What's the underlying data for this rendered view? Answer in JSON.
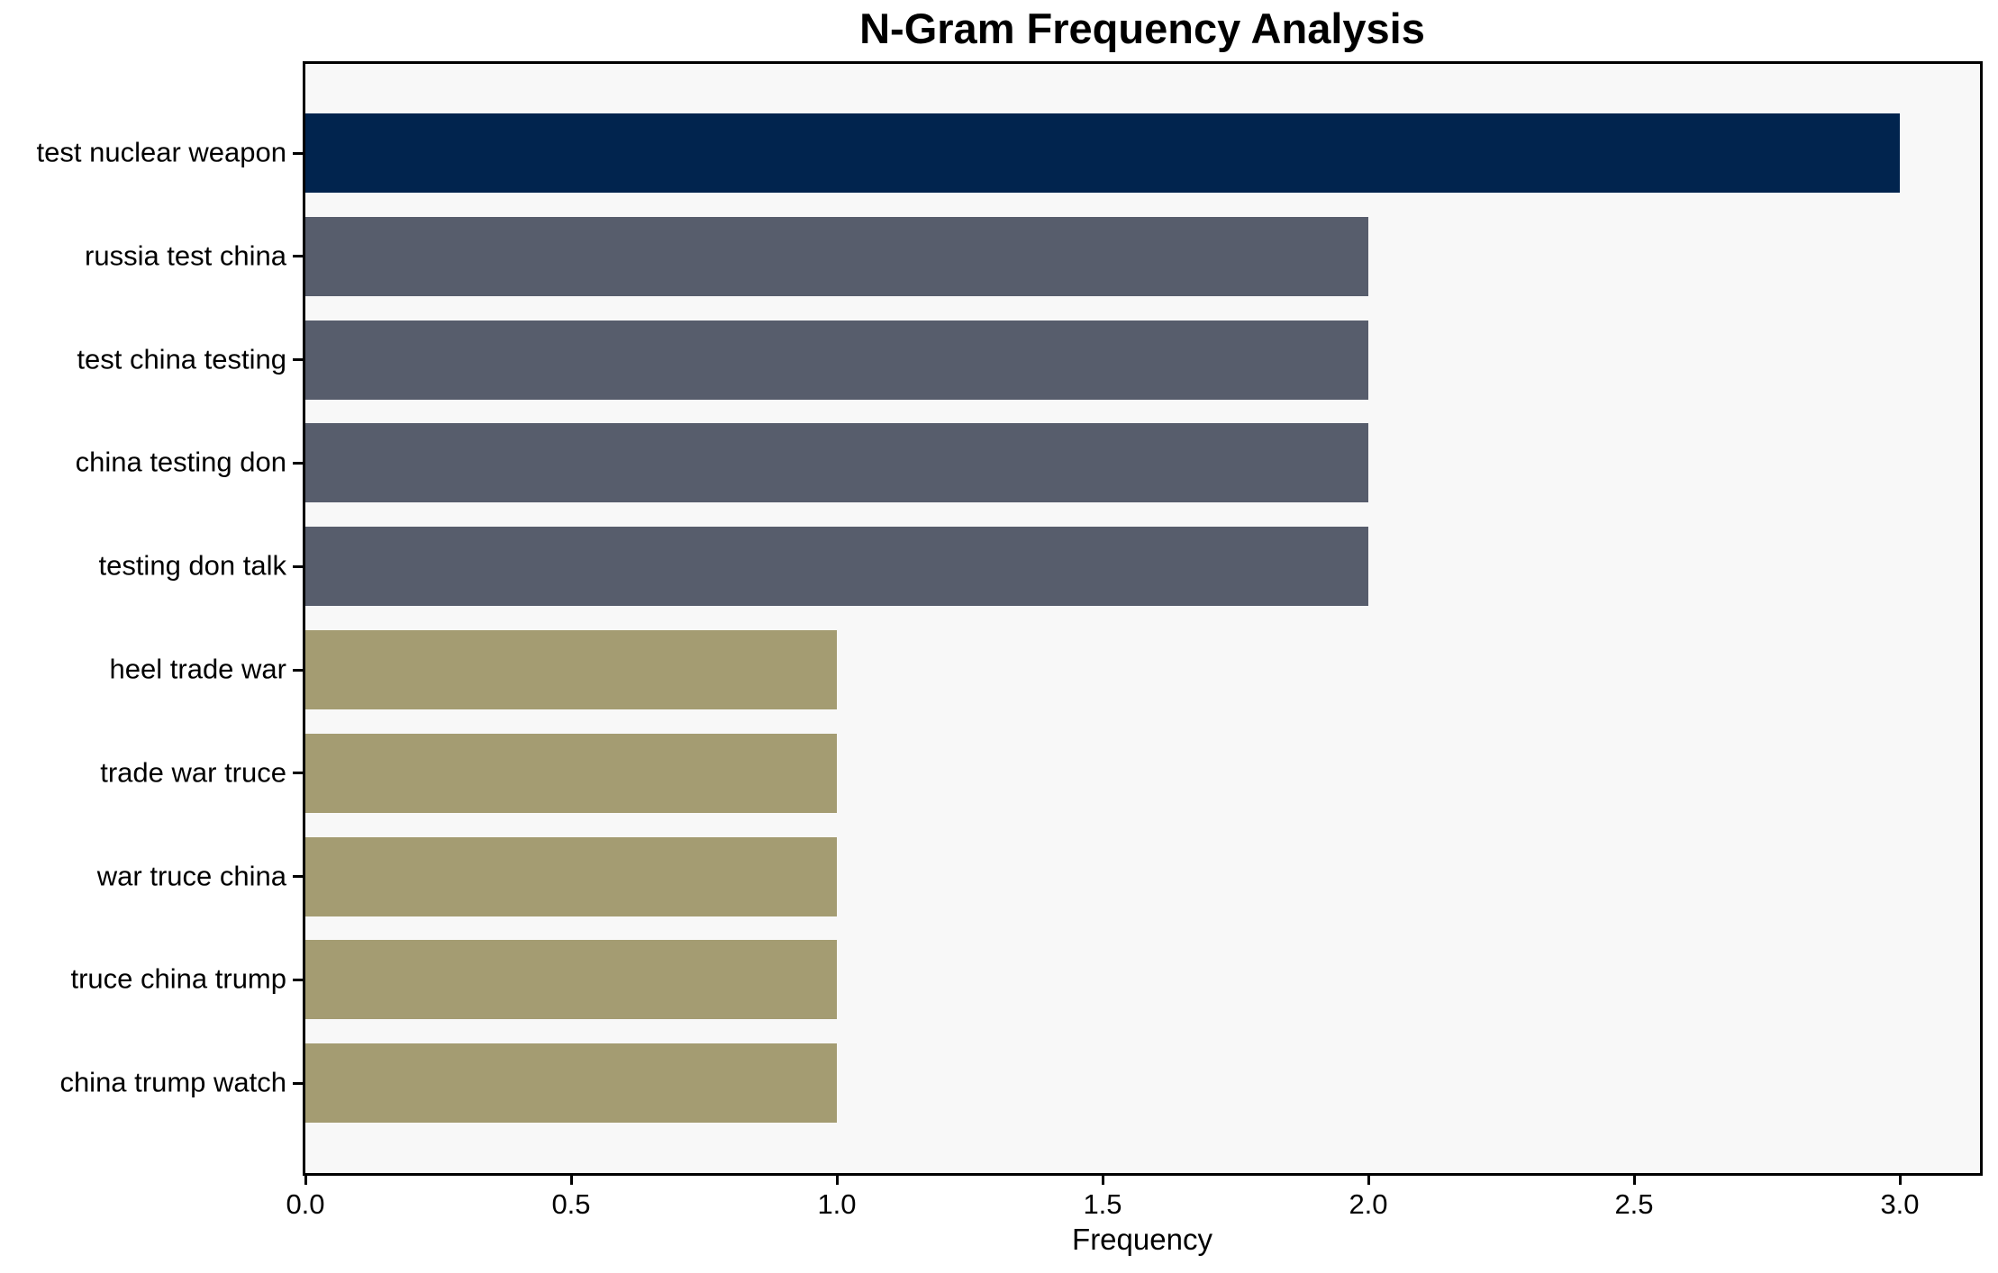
{
  "chart_data": {
    "type": "bar",
    "orientation": "horizontal",
    "title": "N-Gram Frequency Analysis",
    "xlabel": "Frequency",
    "ylabel": "",
    "categories": [
      "test nuclear weapon",
      "russia test china",
      "test china testing",
      "china testing don",
      "testing don talk",
      "heel trade war",
      "trade war truce",
      "war truce china",
      "truce china trump",
      "china trump watch"
    ],
    "values": [
      3,
      2,
      2,
      2,
      2,
      1,
      1,
      1,
      1,
      1
    ],
    "bar_colors": [
      "#01244e",
      "#575d6c",
      "#575d6c",
      "#575d6c",
      "#575d6c",
      "#a49c72",
      "#a49c72",
      "#a49c72",
      "#a49c72",
      "#a49c72"
    ],
    "colors_by_value": {
      "3": "#01244e",
      "2": "#575d6c",
      "1": "#a49c72"
    },
    "xlim": [
      0.0,
      3.15
    ],
    "xticks": [
      0.0,
      0.5,
      1.0,
      1.5,
      2.0,
      2.5,
      3.0
    ],
    "xtick_labels": [
      "0.0",
      "0.5",
      "1.0",
      "1.5",
      "2.0",
      "2.5",
      "3.0"
    ],
    "grid": false,
    "legend": false,
    "plot_background": "#f8f8f8",
    "figure_background": "#ffffff",
    "spine_color": "#000000"
  }
}
